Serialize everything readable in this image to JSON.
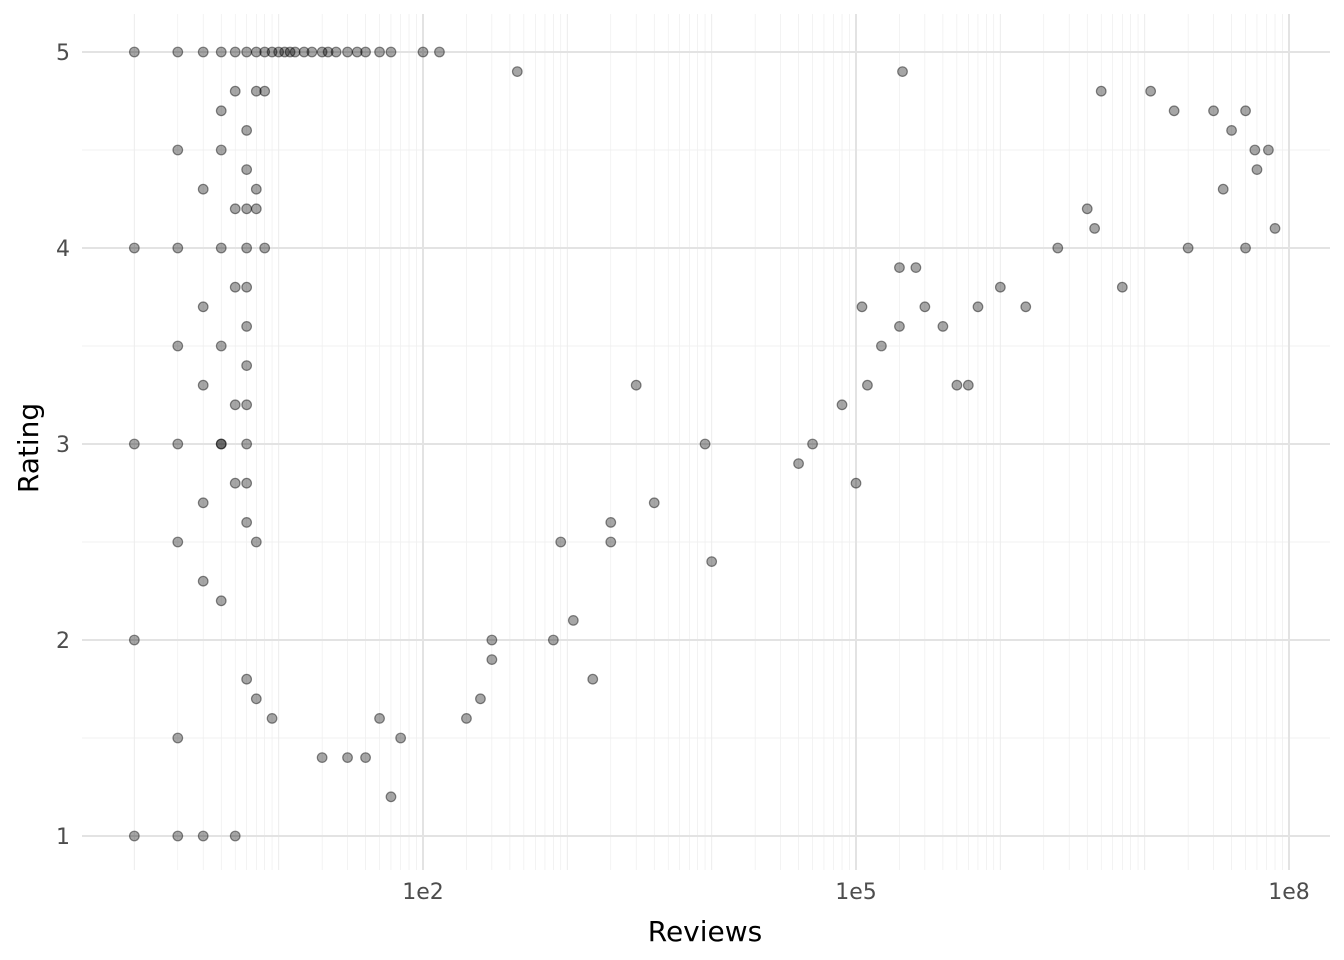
{
  "chart_data": {
    "type": "scatter",
    "xlabel": "Reviews",
    "ylabel": "Rating",
    "x_scale": "log10",
    "xlim": [
      0.5,
      200000000
    ],
    "ylim": [
      0.83,
      5.2
    ],
    "x_ticks": [
      {
        "value": 100,
        "label": "1e2"
      },
      {
        "value": 100000,
        "label": "1e5"
      },
      {
        "value": 100000000,
        "label": "1e8"
      }
    ],
    "y_ticks": [
      {
        "value": 1,
        "label": "1"
      },
      {
        "value": 2,
        "label": "2"
      },
      {
        "value": 3,
        "label": "3"
      },
      {
        "value": 4,
        "label": "4"
      },
      {
        "value": 5,
        "label": "5"
      }
    ],
    "grid": true,
    "marker_color": "#000000",
    "marker_alpha": 0.35,
    "points": [
      [
        1,
        5
      ],
      [
        2,
        5
      ],
      [
        3,
        5
      ],
      [
        4,
        5
      ],
      [
        5,
        5
      ],
      [
        6,
        5
      ],
      [
        7,
        5
      ],
      [
        8,
        5
      ],
      [
        9,
        5
      ],
      [
        10,
        5
      ],
      [
        11,
        5
      ],
      [
        12,
        5
      ],
      [
        13,
        5
      ],
      [
        15,
        5
      ],
      [
        17,
        5
      ],
      [
        20,
        5
      ],
      [
        22,
        5
      ],
      [
        25,
        5
      ],
      [
        30,
        5
      ],
      [
        35,
        5
      ],
      [
        40,
        5
      ],
      [
        50,
        5
      ],
      [
        60,
        5
      ],
      [
        100,
        5
      ],
      [
        130,
        5
      ],
      [
        1,
        4
      ],
      [
        2,
        4
      ],
      [
        4,
        4
      ],
      [
        6,
        4
      ],
      [
        1,
        3
      ],
      [
        2,
        3
      ],
      [
        4,
        3
      ],
      [
        1,
        1
      ],
      [
        2,
        1
      ],
      [
        3,
        1
      ],
      [
        5,
        1
      ],
      [
        1,
        2
      ],
      [
        2,
        4.5
      ],
      [
        4,
        4.7
      ],
      [
        5,
        4.8
      ],
      [
        3,
        4.3
      ],
      [
        4,
        4.5
      ],
      [
        6,
        4.6
      ],
      [
        7,
        4.8
      ],
      [
        8,
        4.8
      ],
      [
        7,
        4.3
      ],
      [
        6,
        4.4
      ],
      [
        5,
        4.2
      ],
      [
        6,
        4.2
      ],
      [
        7,
        4.2
      ],
      [
        8,
        4.0
      ],
      [
        3,
        3.7
      ],
      [
        5,
        3.8
      ],
      [
        6,
        3.8
      ],
      [
        6,
        3.6
      ],
      [
        6,
        3.4
      ],
      [
        2,
        3.5
      ],
      [
        3,
        3.3
      ],
      [
        4,
        3.5
      ],
      [
        5,
        3.2
      ],
      [
        6,
        3.2
      ],
      [
        6,
        3.0
      ],
      [
        6,
        2.8
      ],
      [
        5,
        2.8
      ],
      [
        4,
        3.0
      ],
      [
        3,
        2.7
      ],
      [
        6,
        2.6
      ],
      [
        4,
        2.2
      ],
      [
        3,
        2.3
      ],
      [
        2,
        2.5
      ],
      [
        2,
        1.5
      ],
      [
        6,
        1.8
      ],
      [
        7,
        1.7
      ],
      [
        9,
        1.6
      ],
      [
        7,
        2.5
      ],
      [
        450,
        4.9
      ],
      [
        210000,
        4.9
      ],
      [
        11000000,
        4.8
      ],
      [
        5000000,
        4.8
      ],
      [
        16000000,
        4.7
      ],
      [
        30000000,
        4.7
      ],
      [
        50000000,
        4.7
      ],
      [
        40000000,
        4.6
      ],
      [
        58000000,
        4.5
      ],
      [
        72000000,
        4.5
      ],
      [
        60000000,
        4.4
      ],
      [
        35000000,
        4.3
      ],
      [
        4000000,
        4.2
      ],
      [
        4500000,
        4.1
      ],
      [
        20000000,
        4.0
      ],
      [
        50000000,
        4.0
      ],
      [
        80000000,
        4.1
      ],
      [
        7000000,
        3.8
      ],
      [
        2500000,
        4.0
      ],
      [
        200000,
        3.9
      ],
      [
        260000,
        3.9
      ],
      [
        300000,
        3.7
      ],
      [
        700000,
        3.7
      ],
      [
        1500000,
        3.7
      ],
      [
        100000,
        2.8
      ],
      [
        50000,
        3.0
      ],
      [
        40000,
        2.9
      ],
      [
        10000,
        2.4
      ],
      [
        4000,
        2.7
      ],
      [
        2000,
        2.5
      ],
      [
        1100,
        2.1
      ],
      [
        1500,
        1.8
      ],
      [
        300,
        1.9
      ],
      [
        250,
        1.7
      ],
      [
        200,
        1.6
      ],
      [
        60,
        1.2
      ],
      [
        40,
        1.4
      ],
      [
        30,
        1.4
      ],
      [
        70,
        1.5
      ],
      [
        20,
        1.4
      ],
      [
        50,
        1.6
      ],
      [
        300,
        2.0
      ],
      [
        800,
        2.0
      ],
      [
        900,
        2.5
      ],
      [
        2000,
        2.6
      ],
      [
        9000,
        3.0
      ],
      [
        3000,
        3.3
      ],
      [
        80000,
        3.2
      ],
      [
        120000,
        3.3
      ],
      [
        500000,
        3.3
      ],
      [
        600000,
        3.3
      ],
      [
        200000,
        3.6
      ],
      [
        400000,
        3.6
      ],
      [
        150000,
        3.5
      ],
      [
        110000,
        3.7
      ],
      [
        1000000,
        3.8
      ]
    ]
  }
}
